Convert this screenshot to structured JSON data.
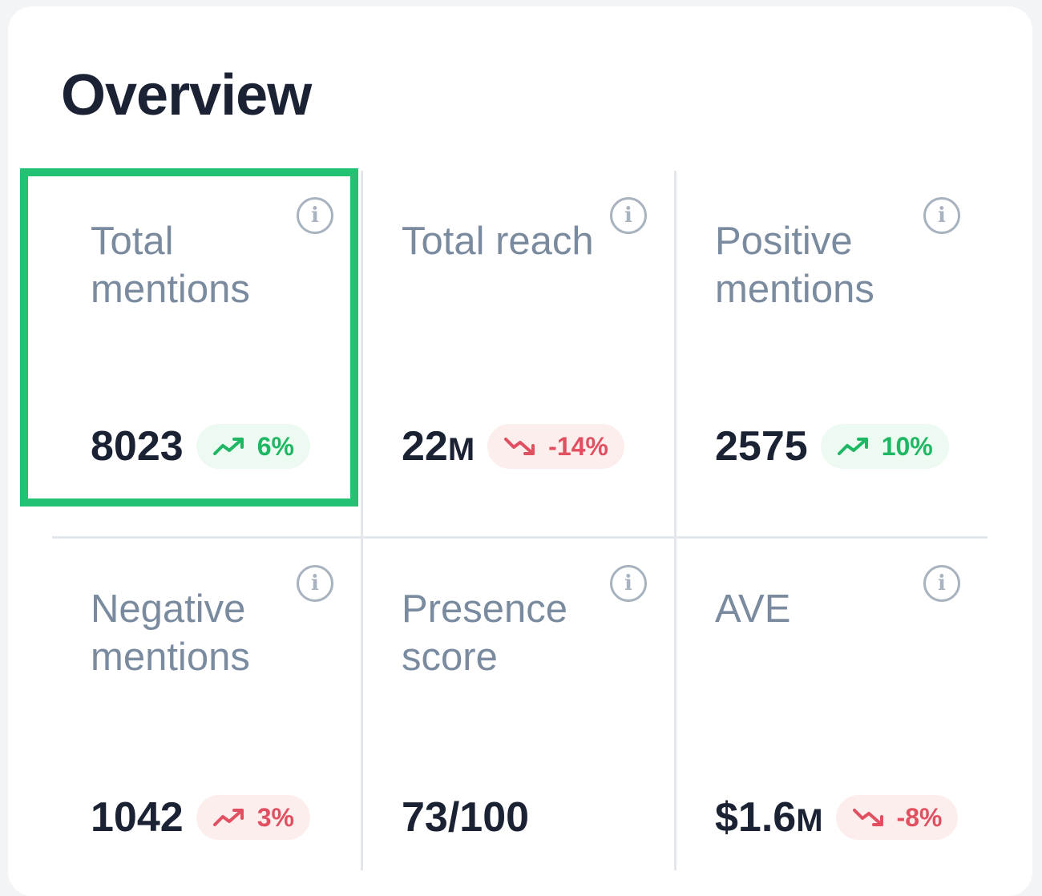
{
  "title": "Overview",
  "highlight_color": "#22c272",
  "metrics": [
    {
      "label": "Total mentions",
      "value": "8023",
      "unit": "",
      "change": "6%",
      "trend": "up",
      "tone": "positive",
      "info_icon": "info-icon"
    },
    {
      "label": "Total reach",
      "value": "22",
      "unit": "M",
      "change": "-14%",
      "trend": "down",
      "tone": "negative",
      "info_icon": "info-icon"
    },
    {
      "label": "Positive mentions",
      "value": "2575",
      "unit": "",
      "change": "10%",
      "trend": "up",
      "tone": "positive",
      "info_icon": "info-icon"
    },
    {
      "label": "Negative mentions",
      "value": "1042",
      "unit": "",
      "change": "3%",
      "trend": "up",
      "tone": "negative",
      "info_icon": "info-icon"
    },
    {
      "label": "Presence score",
      "value": "73/100",
      "unit": "",
      "change": null,
      "info_icon": "info-icon"
    },
    {
      "label": "AVE",
      "value": "$1.6",
      "unit": "M",
      "change": "-8%",
      "trend": "down",
      "tone": "negative",
      "info_icon": "info-icon"
    }
  ],
  "colors": {
    "positive": "#1fb764",
    "negative": "#e05060",
    "label": "#7a8ba0",
    "value": "#1a2233"
  }
}
